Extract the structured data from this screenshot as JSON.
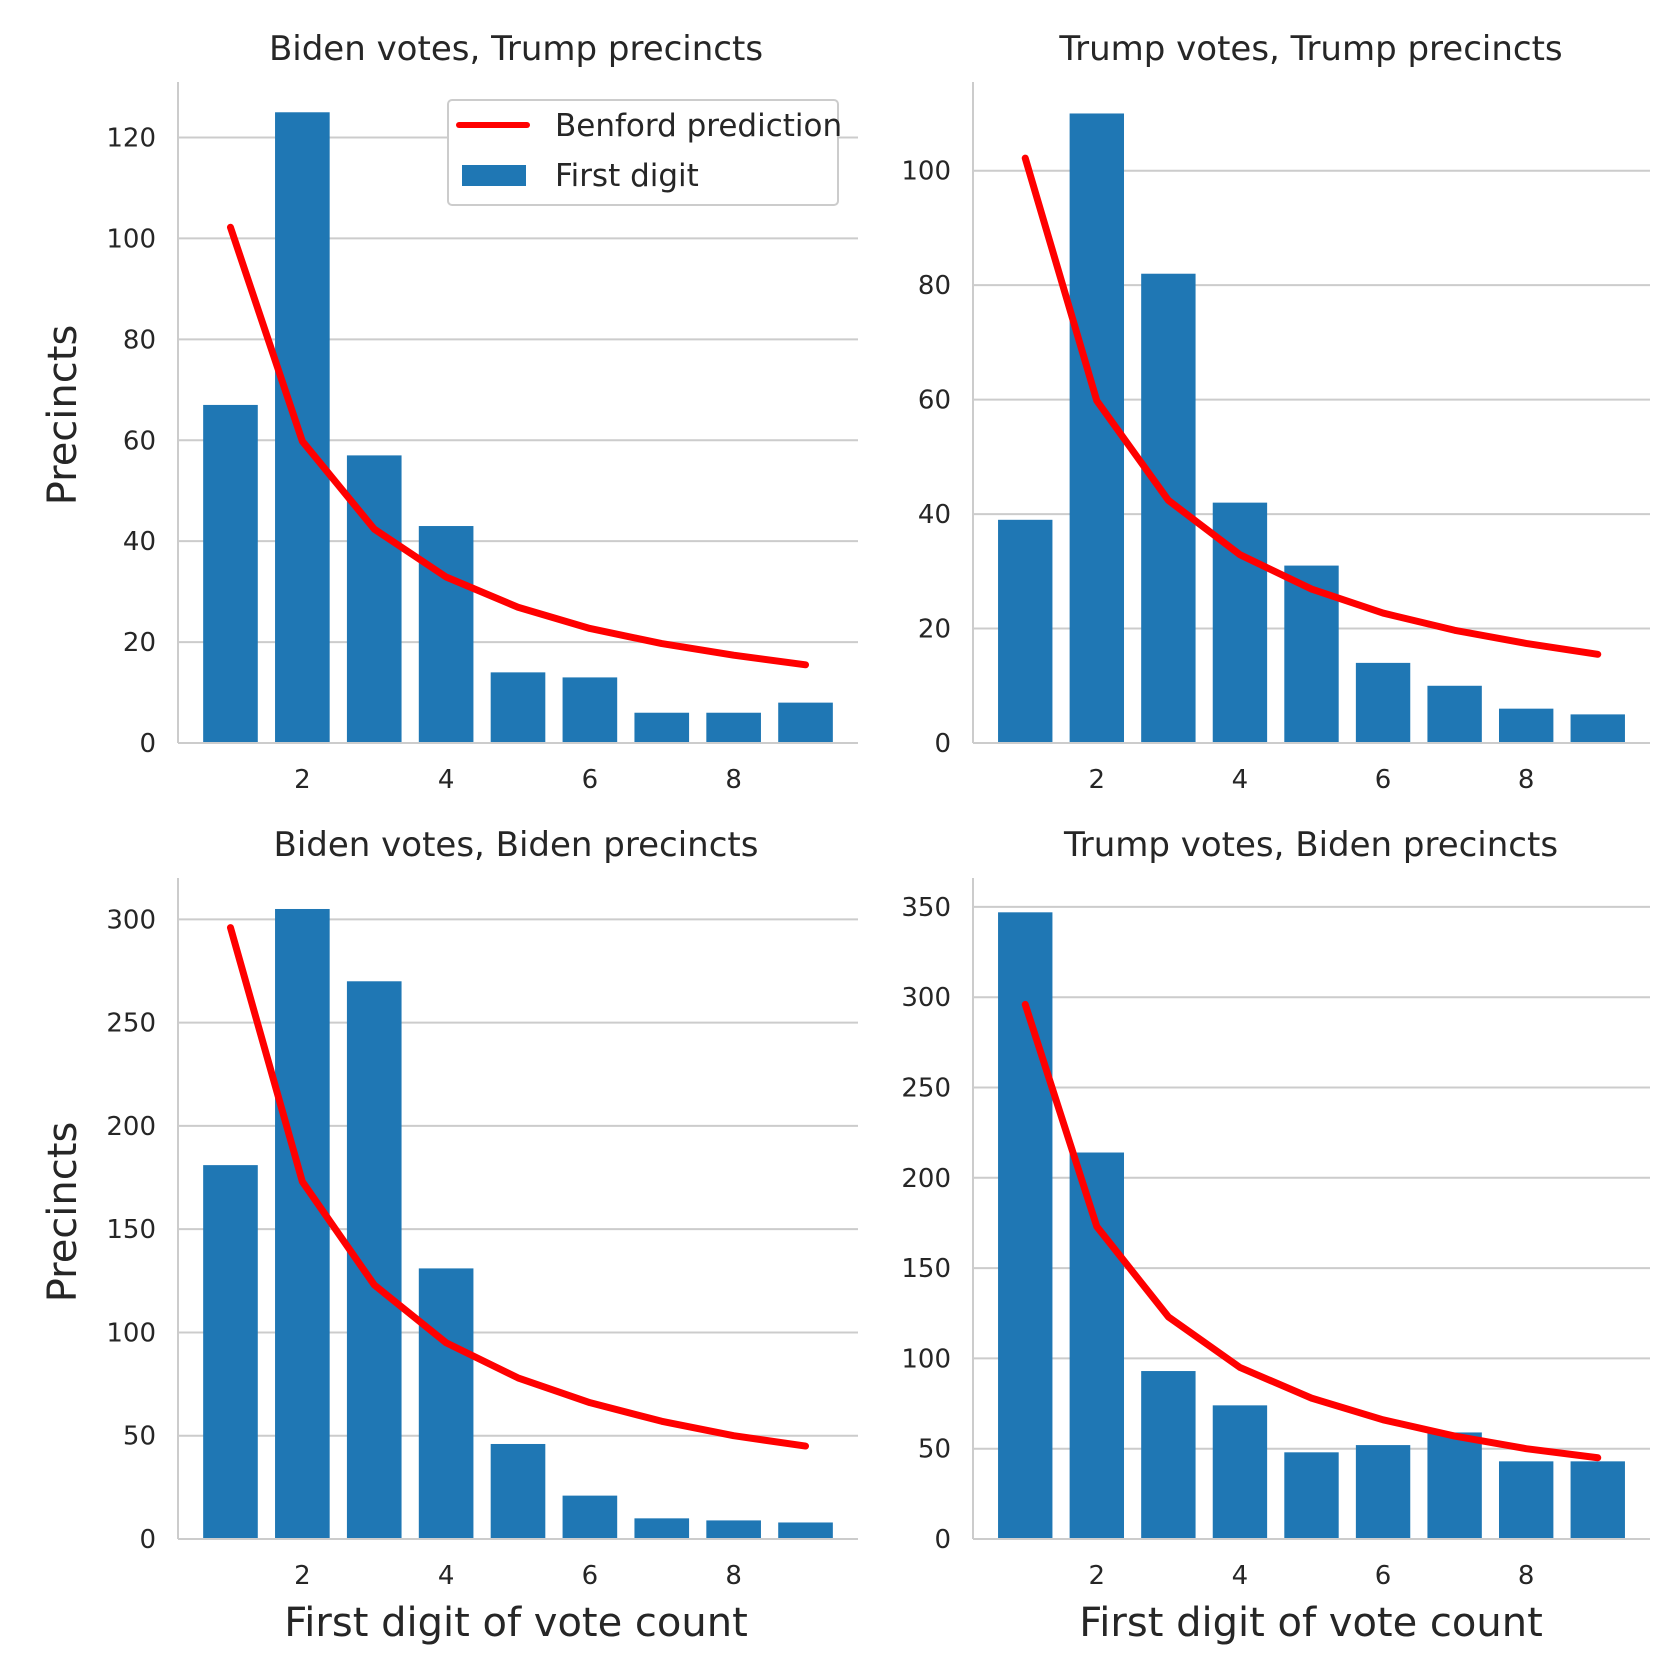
{
  "colors": {
    "bar": "#1f77b4",
    "benford_line": "#ff0000",
    "grid": "#cccccc",
    "axis": "#cccccc",
    "text": "#262626",
    "legend_border": "#cccccc"
  },
  "legend": {
    "placement": "upper right of first panel",
    "entries": [
      "Benford prediction",
      "First digit"
    ]
  },
  "chart_data": [
    {
      "type": "bar",
      "title": "Biden votes, Trump precincts",
      "xlabel": "",
      "ylabel": "Precincts",
      "x": [
        1,
        2,
        3,
        4,
        5,
        6,
        7,
        8,
        9
      ],
      "xticks": [
        2,
        4,
        6,
        8
      ],
      "ylim": [
        0,
        131
      ],
      "yticks": [
        0,
        20,
        40,
        60,
        80,
        100,
        120
      ],
      "grid": "y",
      "series": [
        {
          "name": "First digit",
          "type": "bar",
          "values": [
            67,
            125,
            57,
            43,
            14,
            13,
            6,
            6,
            8
          ]
        },
        {
          "name": "Benford prediction",
          "type": "line",
          "values": [
            102.2,
            59.8,
            42.4,
            32.9,
            26.9,
            22.7,
            19.7,
            17.4,
            15.5
          ]
        }
      ]
    },
    {
      "type": "bar",
      "title": "Trump votes, Trump precincts",
      "xlabel": "",
      "ylabel": "",
      "x": [
        1,
        2,
        3,
        4,
        5,
        6,
        7,
        8,
        9
      ],
      "xticks": [
        2,
        4,
        6,
        8
      ],
      "ylim": [
        0,
        115.5
      ],
      "yticks": [
        0,
        20,
        40,
        60,
        80,
        100
      ],
      "grid": "y",
      "series": [
        {
          "name": "First digit",
          "type": "bar",
          "values": [
            39,
            110,
            82,
            42,
            31,
            14,
            10,
            6,
            5
          ]
        },
        {
          "name": "Benford prediction",
          "type": "line",
          "values": [
            102.2,
            59.8,
            42.4,
            32.9,
            26.9,
            22.7,
            19.7,
            17.4,
            15.5
          ]
        }
      ]
    },
    {
      "type": "bar",
      "title": "Biden votes, Biden precincts",
      "xlabel": "First digit of vote count",
      "ylabel": "Precincts",
      "x": [
        1,
        2,
        3,
        4,
        5,
        6,
        7,
        8,
        9
      ],
      "xticks": [
        2,
        4,
        6,
        8
      ],
      "ylim": [
        0,
        320
      ],
      "yticks": [
        0,
        50,
        100,
        150,
        200,
        250,
        300
      ],
      "grid": "y",
      "series": [
        {
          "name": "First digit",
          "type": "bar",
          "values": [
            181,
            305,
            270,
            131,
            46,
            21,
            10,
            9,
            8
          ]
        },
        {
          "name": "Benford prediction",
          "type": "line",
          "values": [
            296,
            173,
            123,
            95,
            78,
            66,
            57,
            50,
            45
          ]
        }
      ]
    },
    {
      "type": "bar",
      "title": "Trump votes, Biden precincts",
      "xlabel": "First digit of vote count",
      "ylabel": "",
      "x": [
        1,
        2,
        3,
        4,
        5,
        6,
        7,
        8,
        9
      ],
      "xticks": [
        2,
        4,
        6,
        8
      ],
      "ylim": [
        0,
        366
      ],
      "yticks": [
        0,
        50,
        100,
        150,
        200,
        250,
        300,
        350
      ],
      "grid": "y",
      "series": [
        {
          "name": "First digit",
          "type": "bar",
          "values": [
            347,
            214,
            93,
            74,
            48,
            52,
            59,
            43,
            43
          ]
        },
        {
          "name": "Benford prediction",
          "type": "line",
          "values": [
            296,
            173,
            123,
            95,
            78,
            66,
            57,
            50,
            45
          ]
        }
      ]
    }
  ]
}
